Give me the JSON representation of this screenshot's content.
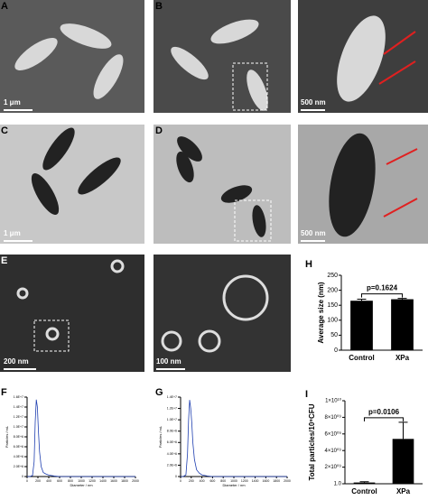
{
  "panel_labels": [
    "A",
    "B",
    "C",
    "D",
    "E",
    "H",
    "F",
    "G",
    "I"
  ],
  "scale_bars": [
    "1 μm",
    "500 nm",
    "1 μm",
    "500 nm",
    "200 nm",
    "100 nm"
  ],
  "chart_data": [
    {
      "type": "bar",
      "categories": [
        "Control",
        "XPa"
      ],
      "values": [
        165,
        170
      ],
      "errors": [
        5,
        3
      ],
      "color": "#000000",
      "ylabel": "Average size (nm)",
      "annotation": "p=0.1624",
      "ylim": [
        0,
        250
      ],
      "yticks": [
        0,
        50,
        100,
        150,
        200,
        250
      ]
    },
    {
      "type": "line",
      "color": "#1f3fb0",
      "xlabel": "Diameter / nm",
      "ylabel": "Particles / mL",
      "x": [
        0,
        50,
        100,
        130,
        150,
        170,
        190,
        210,
        230,
        260,
        300,
        350,
        400,
        500,
        600,
        800,
        1000,
        1500,
        2000
      ],
      "values": [
        0,
        0,
        200000,
        3000000,
        11000000,
        15500000,
        14000000,
        9000000,
        5000000,
        2000000,
        800000,
        500000,
        300000,
        100000,
        0,
        0,
        0,
        0,
        0
      ],
      "xlim": [
        0,
        2000
      ],
      "xticks": [
        0,
        200,
        400,
        600,
        800,
        1000,
        1200,
        1400,
        1600,
        1800,
        2000
      ],
      "ylim": [
        0,
        16000000
      ],
      "yticks": [
        0,
        {
          "value": 2000000,
          "label": "2.0E+6"
        },
        {
          "value": 4000000,
          "label": "4.0E+6"
        },
        {
          "value": 6000000,
          "label": "6.0E+6"
        },
        {
          "value": 8000000,
          "label": "8.0E+6"
        },
        {
          "value": 10000000,
          "label": "1.0E+7"
        },
        {
          "value": 12000000,
          "label": "1.2E+7"
        },
        {
          "value": 14000000,
          "label": "1.4E+7"
        },
        {
          "value": 16000000,
          "label": "1.6E+7"
        }
      ]
    },
    {
      "type": "line",
      "color": "#1f3fb0",
      "xlabel": "Diameter / nm",
      "ylabel": "Particles / mL",
      "x": [
        0,
        50,
        100,
        130,
        150,
        170,
        190,
        210,
        230,
        260,
        300,
        350,
        400,
        500,
        600,
        800,
        1000,
        1500,
        2000
      ],
      "values": [
        0,
        0,
        300000,
        4000000,
        10000000,
        13500000,
        12000000,
        9500000,
        6000000,
        3000000,
        1200000,
        600000,
        300000,
        100000,
        0,
        0,
        0,
        0,
        0
      ],
      "xlim": [
        0,
        2000
      ],
      "xticks": [
        0,
        200,
        400,
        600,
        800,
        1000,
        1200,
        1400,
        1600,
        1800,
        2000
      ],
      "ylim": [
        0,
        14000000
      ],
      "yticks": [
        0,
        {
          "value": 2000000,
          "label": "2.0E+6"
        },
        {
          "value": 4000000,
          "label": "4.0E+6"
        },
        {
          "value": 6000000,
          "label": "6.0E+6"
        },
        {
          "value": 8000000,
          "label": "8.0E+6"
        },
        {
          "value": 10000000,
          "label": "1.0E+7"
        },
        {
          "value": 12000000,
          "label": "1.2E+7"
        },
        {
          "value": 14000000,
          "label": "1.4E+7"
        }
      ]
    },
    {
      "type": "bar",
      "categories": [
        "Control",
        "XPa"
      ],
      "values": [
        150000000,
        5400000000
      ],
      "errors": [
        100000000,
        2000000000
      ],
      "color": "#000000",
      "ylabel": "Total particles/10⁹CFU",
      "annotation": "p=0.0106",
      "ylim": [
        1,
        10000000000
      ],
      "yticks": [
        {
          "value": 1,
          "label": "1.0"
        },
        {
          "value": 2000000000,
          "label": "2×10⁰⁹"
        },
        {
          "value": 4000000000,
          "label": "4×10⁰⁹"
        },
        {
          "value": 6000000000,
          "label": "6×10⁰⁹"
        },
        {
          "value": 8000000000,
          "label": "8×10⁰⁹"
        },
        {
          "value": 10000000000,
          "label": "1×10¹⁰"
        }
      ]
    }
  ]
}
